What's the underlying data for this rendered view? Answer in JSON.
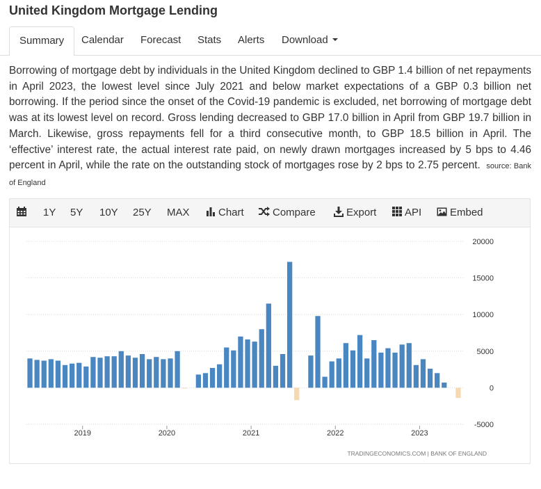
{
  "page": {
    "title": "United Kingdom Mortgage Lending"
  },
  "tabs": [
    {
      "label": "Summary"
    },
    {
      "label": "Calendar"
    },
    {
      "label": "Forecast"
    },
    {
      "label": "Stats"
    },
    {
      "label": "Alerts"
    },
    {
      "label": "Download"
    }
  ],
  "description": {
    "text": "Borrowing of mortgage debt by individuals in the United Kingdom declined to GBP 1.4 billion of net repayments in April 2023, the lowest level since July 2021 and below market expectations of a GBP 0.3 billion net borrowing. If the period since the onset of the Covid-19 pandemic is excluded, net borrowing of mortgage debt was at its lowest level on record. Gross lending decreased to GBP 17.0 billion in April from GBP 19.7 billion in March. Likewise, gross repayments fell for a third consecutive month, to GBP 18.5 billion in April. The ‘effective’ interest rate, the actual interest rate paid, on newly drawn mortgages increased by 5 bps to 4.46 percent in April, while the rate on the outstanding stock of mortgages rose by 2 bps to 2.75 percent.",
    "source": "source: Bank of England"
  },
  "toolbar": {
    "ranges": [
      "1Y",
      "5Y",
      "10Y",
      "25Y",
      "MAX"
    ],
    "chart_label": "Chart",
    "compare_label": "Compare",
    "export_label": "Export",
    "api_label": "API",
    "embed_label": "Embed",
    "icons": [
      "calendar-icon",
      "bar-chart-icon",
      "shuffle-icon",
      "download-icon",
      "grid-icon",
      "image-icon"
    ]
  },
  "chart_data": {
    "type": "bar",
    "credit": "TRADINGECONOMICS.COM | BANK OF ENGLAND",
    "yticks": [
      "20000",
      "15000",
      "10000",
      "5000",
      "0",
      "-5000"
    ],
    "ylim": [
      -5000,
      20000
    ],
    "xticks": [
      {
        "label": "2019",
        "index": 7.5
      },
      {
        "label": "2020",
        "index": 19.5
      },
      {
        "label": "2021",
        "index": 31.5
      },
      {
        "label": "2022",
        "index": 43.5
      },
      {
        "label": "2023",
        "index": 55.5
      }
    ],
    "grid": true,
    "positive_color": "#4a86c0",
    "negative_color": "#f7d9b1",
    "values": [
      4000,
      3800,
      3700,
      3900,
      3700,
      3100,
      3300,
      3400,
      2900,
      4200,
      4100,
      4300,
      4300,
      5000,
      4400,
      4100,
      4600,
      3900,
      4200,
      3900,
      4000,
      5000,
      -100,
      0,
      1800,
      2000,
      2700,
      3200,
      5500,
      5100,
      7000,
      6600,
      6300,
      8000,
      11500,
      3000,
      4600,
      17200,
      -1700,
      0,
      4400,
      9800,
      1500,
      3600,
      4000,
      6100,
      5100,
      7200,
      4000,
      6500,
      4800,
      5400,
      4800,
      5900,
      6100,
      3100,
      3900,
      2600,
      2000,
      700,
      0,
      -1400
    ]
  }
}
